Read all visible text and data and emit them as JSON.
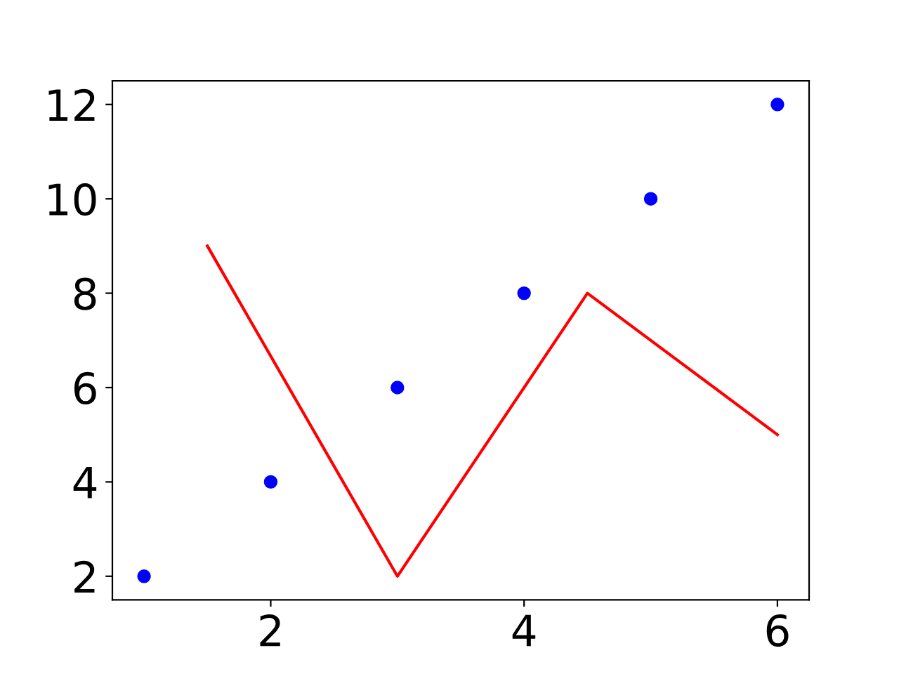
{
  "chart_data": {
    "type": "scatter",
    "marker": "circle",
    "grid": false,
    "xlim": [
      0.75,
      6.25
    ],
    "ylim": [
      1.5,
      12.5
    ],
    "xticks": [
      2,
      4,
      6
    ],
    "yticks": [
      2,
      4,
      6,
      8,
      10,
      12
    ],
    "series": [
      {
        "color": "#0000ff",
        "x": [
          1,
          2,
          3,
          4,
          5,
          6
        ],
        "values": [
          2,
          4,
          6,
          8,
          10,
          12
        ]
      },
      {
        "type": "line",
        "color": "#ff0000",
        "marker": "none",
        "line_style": "solid",
        "x": [
          1.5,
          3,
          4.5,
          6
        ],
        "values": [
          9,
          2,
          8,
          5
        ]
      }
    ]
  }
}
